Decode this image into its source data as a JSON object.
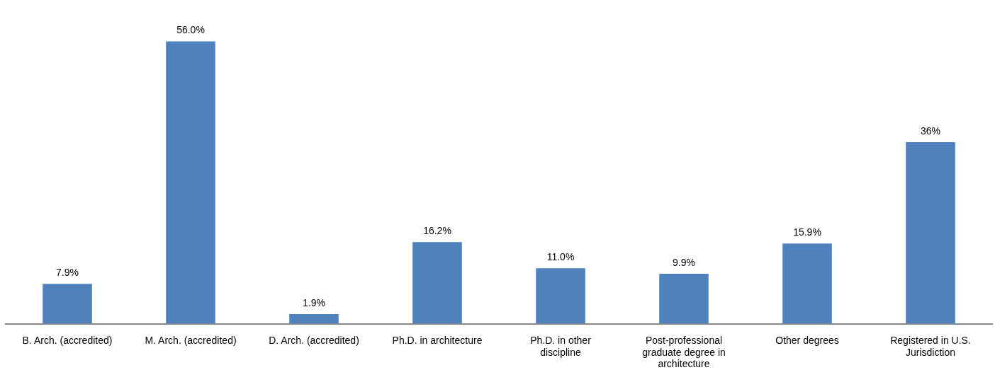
{
  "chart_data": {
    "type": "bar",
    "categories": [
      "B. Arch. (accredited)",
      "M. Arch. (accredited)",
      "D. Arch. (accredited)",
      "Ph.D. in architecture",
      "Ph.D. in other discipline",
      "Post-professional graduate degree in architecture",
      "Other degrees",
      "Registered in U.S. Jurisdiction"
    ],
    "values": [
      7.9,
      56.0,
      1.9,
      16.2,
      11.0,
      9.9,
      15.9,
      36
    ],
    "value_labels": [
      "7.9%",
      "56.0%",
      "1.9%",
      "16.2%",
      "11.0%",
      "9.9%",
      "15.9%",
      "36%"
    ],
    "color": "#4f81bd",
    "grid": false,
    "legend": false
  }
}
